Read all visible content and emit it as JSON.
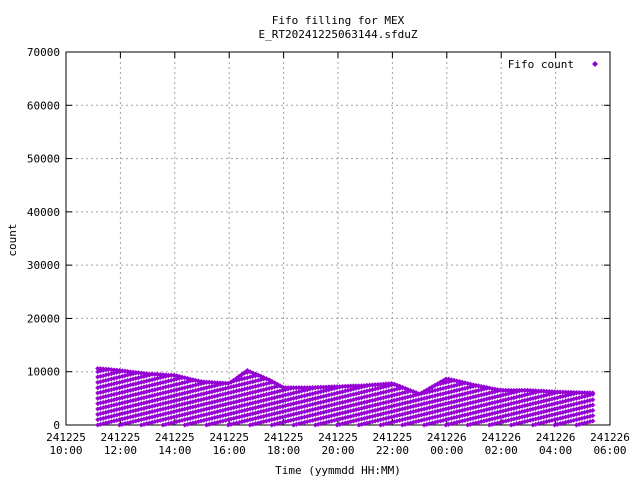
{
  "chart_data": {
    "type": "scatter",
    "title": "Fifo filling for MEX",
    "subtitle": "E_RT20241225063144.sfduZ",
    "xlabel": "Time (yymmdd HH:MM)",
    "ylabel": "count",
    "xlim": [
      "2024-12-25 10:00",
      "2024-12-26 06:00"
    ],
    "ylim": [
      0,
      70000
    ],
    "y_ticks": [
      "0",
      "10000",
      "20000",
      "30000",
      "40000",
      "50000",
      "60000",
      "70000"
    ],
    "x_ticks": [
      {
        "date": "241225",
        "time": "10:00"
      },
      {
        "date": "241225",
        "time": "12:00"
      },
      {
        "date": "241225",
        "time": "14:00"
      },
      {
        "date": "241225",
        "time": "16:00"
      },
      {
        "date": "241225",
        "time": "18:00"
      },
      {
        "date": "241225",
        "time": "20:00"
      },
      {
        "date": "241225",
        "time": "22:00"
      },
      {
        "date": "241226",
        "time": "00:00"
      },
      {
        "date": "241226",
        "time": "02:00"
      },
      {
        "date": "241226",
        "time": "04:00"
      },
      {
        "date": "241226",
        "time": "06:00"
      }
    ],
    "grid": true,
    "legend_position": "top-right",
    "series": [
      {
        "name": "Fifo count",
        "color": "#9400d3",
        "marker": "diamond",
        "x_start": "2024-12-25 11:10",
        "x_end": "2024-12-26 05:25",
        "envelope_peak_count": [
          [
            "2024-12-25 11:15",
            10600
          ],
          [
            "2024-12-25 12:00",
            10200
          ],
          [
            "2024-12-25 13:00",
            9600
          ],
          [
            "2024-12-25 14:00",
            9300
          ],
          [
            "2024-12-25 15:00",
            8100
          ],
          [
            "2024-12-25 16:00",
            7800
          ],
          [
            "2024-12-25 16:40",
            10200
          ],
          [
            "2024-12-25 17:30",
            8400
          ],
          [
            "2024-12-25 18:00",
            7000
          ],
          [
            "2024-12-25 19:00",
            7000
          ],
          [
            "2024-12-25 20:00",
            7200
          ],
          [
            "2024-12-25 21:00",
            7400
          ],
          [
            "2024-12-25 22:00",
            7800
          ],
          [
            "2024-12-25 23:00",
            5800
          ],
          [
            "2024-12-26 00:00",
            8700
          ],
          [
            "2024-12-26 01:00",
            7500
          ],
          [
            "2024-12-26 02:00",
            6500
          ],
          [
            "2024-12-26 03:00",
            6500
          ],
          [
            "2024-12-26 04:00",
            6200
          ],
          [
            "2024-12-26 05:25",
            6000
          ]
        ],
        "level_step_count": 1000
      }
    ]
  }
}
